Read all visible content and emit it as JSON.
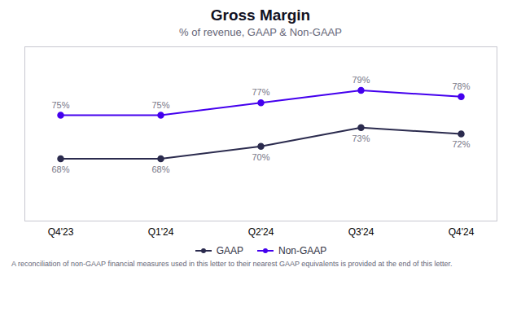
{
  "chart_data": {
    "type": "line",
    "title": "Gross Margin",
    "subtitle": "% of revenue, GAAP & Non-GAAP",
    "footnote": "A reconciliation of non-GAAP financial measures used in this letter to their nearest GAAP equivalents is provided at the end of this letter.",
    "categories": [
      "Q4'23",
      "Q1'24",
      "Q2'24",
      "Q3'24",
      "Q4'24"
    ],
    "series": [
      {
        "name": "GAAP",
        "color": "#2b2b4e",
        "values": [
          68,
          68,
          70,
          73,
          72
        ],
        "value_labels": [
          "68%",
          "68%",
          "70%",
          "73%",
          "72%"
        ]
      },
      {
        "name": "Non-GAAP",
        "color": "#4400ee",
        "values": [
          75,
          75,
          77,
          79,
          78
        ],
        "value_labels": [
          "75%",
          "75%",
          "77%",
          "79%",
          "78%"
        ]
      }
    ],
    "ylim": [
      58,
      86
    ],
    "yticks": [],
    "tick_labels": "x",
    "grid": false,
    "data_labels": true,
    "marker": "circle",
    "legend": "bottom"
  }
}
